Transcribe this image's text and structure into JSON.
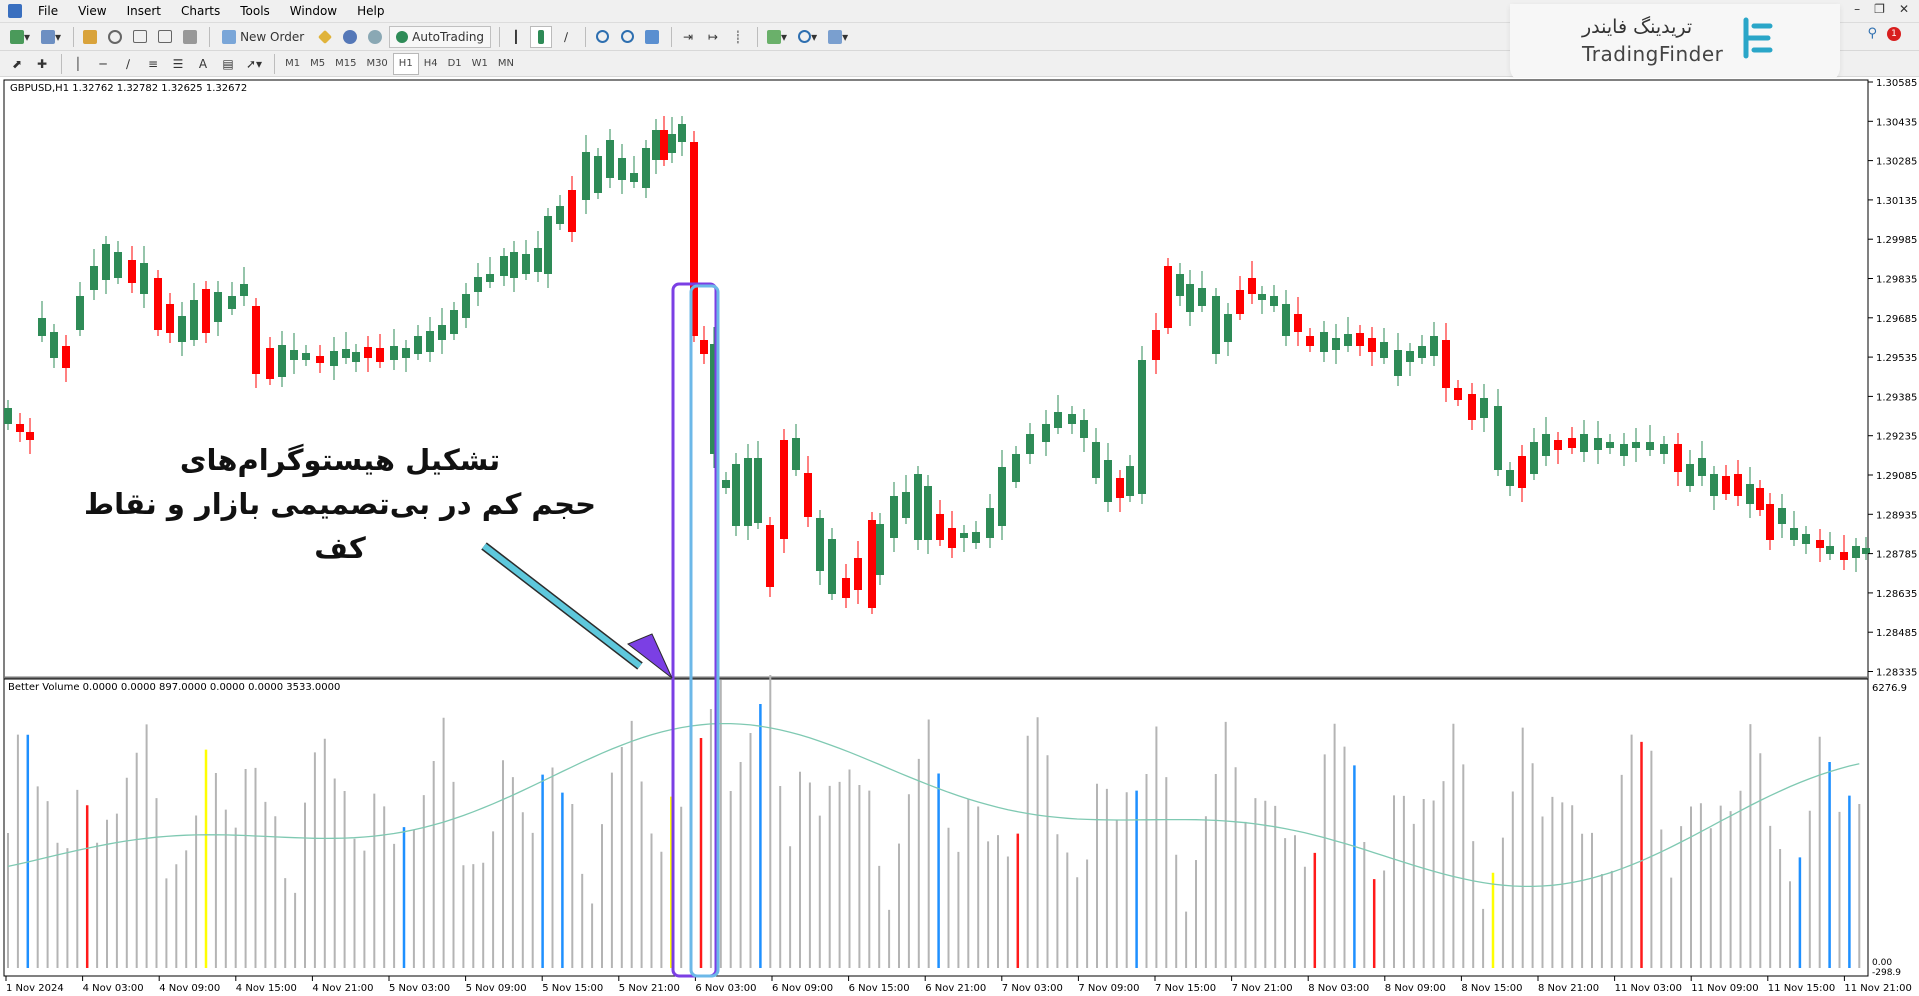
{
  "menu": {
    "items": [
      "File",
      "View",
      "Insert",
      "Charts",
      "Tools",
      "Window",
      "Help"
    ]
  },
  "toolbar": {
    "new_order_label": "New Order",
    "autotrading_label": "AutoTrading",
    "timeframes": [
      "M1",
      "M5",
      "M15",
      "M30",
      "H1",
      "H4",
      "D1",
      "W1",
      "MN"
    ],
    "active_timeframe": "H1",
    "text_tool_label": "A"
  },
  "brand": {
    "name_fa": "تریدینگ فایندر",
    "name_en": "TradingFinder",
    "notification_count": "1"
  },
  "chart": {
    "header": "GBPUSD,H1  1.32762 1.32782 1.32625 1.32672",
    "indicator_header": "Better Volume 0.0000 0.0000 897.0000 0.0000 0.0000 3533.0000",
    "price_ticks": [
      "1.30585",
      "1.30435",
      "1.30285",
      "1.30135",
      "1.29985",
      "1.29835",
      "1.29685",
      "1.29535",
      "1.29385",
      "1.29235",
      "1.29085",
      "1.28935",
      "1.28785",
      "1.28635",
      "1.28485",
      "1.28335"
    ],
    "volume_ticks": [
      "6276.9",
      "0.00",
      "-298.9"
    ],
    "time_ticks": [
      "1 Nov 2024",
      "4 Nov 03:00",
      "4 Nov 09:00",
      "4 Nov 15:00",
      "4 Nov 21:00",
      "5 Nov 03:00",
      "5 Nov 09:00",
      "5 Nov 15:00",
      "5 Nov 21:00",
      "6 Nov 03:00",
      "6 Nov 09:00",
      "6 Nov 15:00",
      "6 Nov 21:00",
      "7 Nov 03:00",
      "7 Nov 09:00",
      "7 Nov 15:00",
      "7 Nov 21:00",
      "8 Nov 03:00",
      "8 Nov 09:00",
      "8 Nov 15:00",
      "8 Nov 21:00",
      "11 Nov 03:00",
      "11 Nov 09:00",
      "11 Nov 15:00",
      "11 Nov 21:00"
    ],
    "colors": {
      "bull": "#2e8b57",
      "bear": "#ff0000",
      "volume_default": "#b4b4b4",
      "volume_climax": "#1e90ff",
      "volume_churn": "#ff1a1a",
      "volume_low": "#ffff00",
      "ma_line": "#7fc9b2",
      "highlight_rect_1": "#7b3fe4",
      "highlight_rect_2": "#6cb8e8"
    }
  },
  "annotation": {
    "line1": "تشکیل هیستوگرام‌های",
    "line2": "حجم کم در بی‌تصمیمی بازار و نقاط کف"
  }
}
